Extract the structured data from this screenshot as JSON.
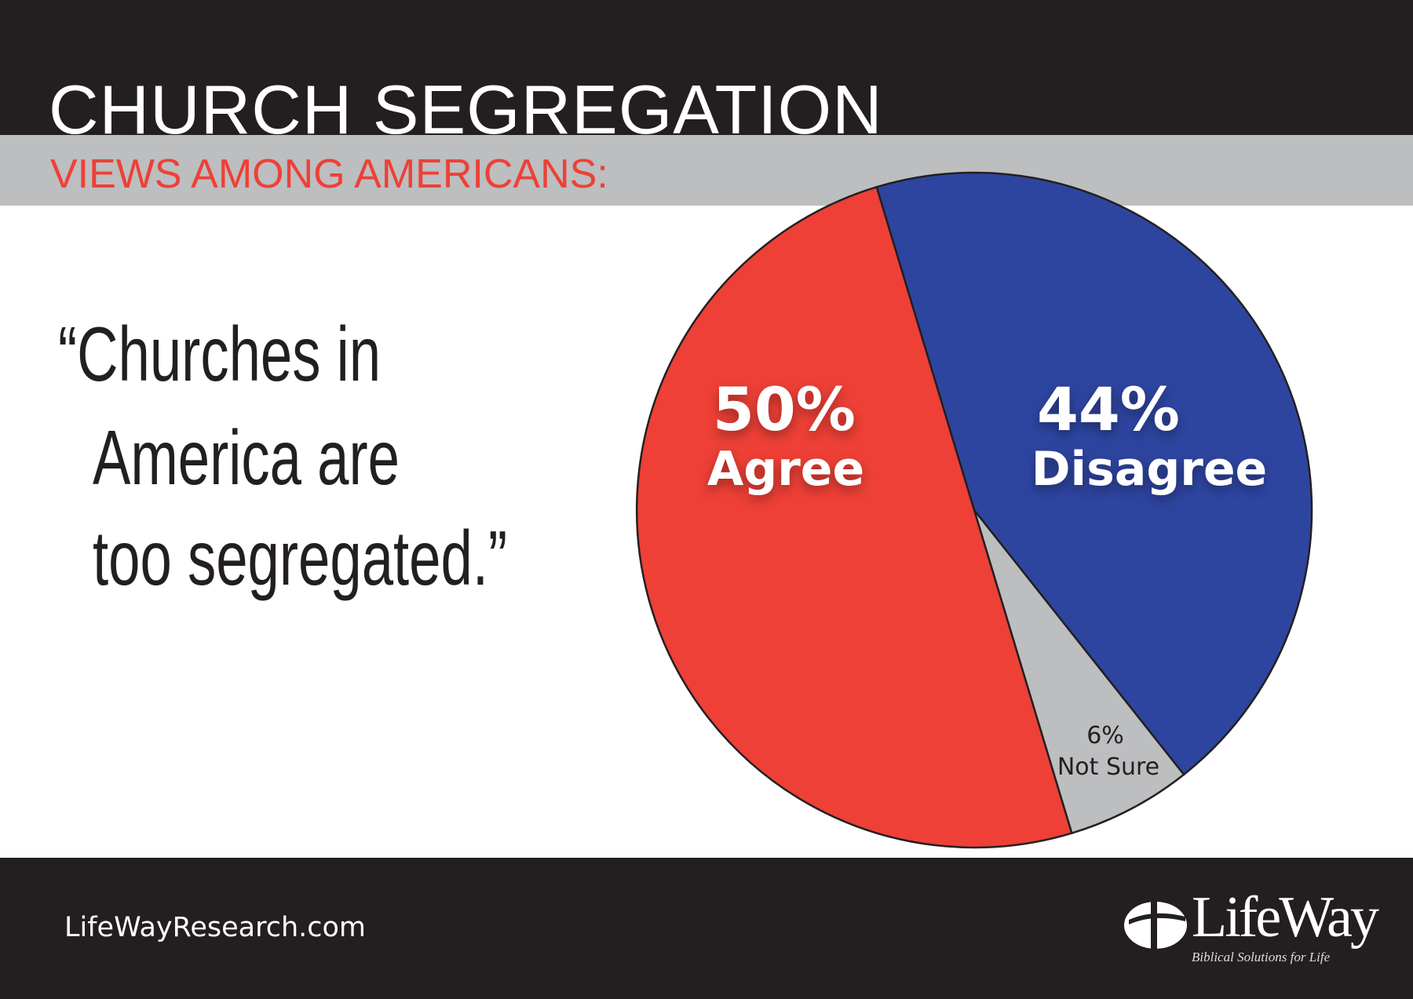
{
  "header": {
    "title": "CHURCH SEGREGATION",
    "subtitle": "VIEWS AMONG AMERICANS:"
  },
  "quote": {
    "lines": [
      "“Churches in",
      "America are",
      "too segregated.”"
    ]
  },
  "chart_data": {
    "type": "pie",
    "title": "CHURCH SEGREGATION",
    "categories": [
      "Disagree",
      "Not Sure",
      "Agree"
    ],
    "values": [
      44,
      6,
      50
    ],
    "labels": [
      {
        "pct": "44%",
        "name": "Disagree"
      },
      {
        "pct": "6%",
        "name": "Not Sure"
      },
      {
        "pct": "50%",
        "name": "Agree"
      }
    ],
    "colors": [
      "#2e45a0",
      "#bcbec0",
      "#ee4036"
    ]
  },
  "footer": {
    "url": "LifeWayResearch.com",
    "logo": {
      "name": "LifeWay",
      "tagline": "Biblical Solutions for Life"
    }
  }
}
